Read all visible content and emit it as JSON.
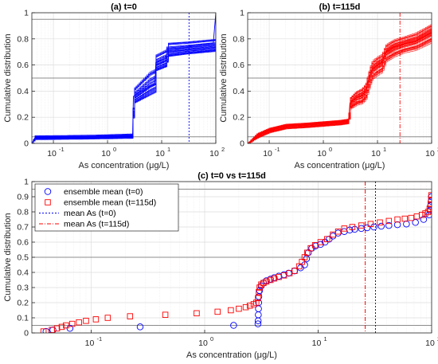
{
  "chart_data": [
    {
      "type": "line",
      "title": "(a) t=0",
      "xlabel": "As concentration (μg/L)",
      "ylabel": "Cumulative distribution",
      "xscale": "log",
      "xlim": [
        0.04,
        100
      ],
      "ylim": [
        0,
        1
      ],
      "x_ticks": [
        0.1,
        1,
        10,
        100
      ],
      "x_tick_labels": [
        "10",
        "10",
        "10",
        "10"
      ],
      "x_tick_exponents": [
        "-1",
        "0",
        "1",
        "2"
      ],
      "y_ticks": [
        0,
        0.2,
        0.4,
        0.6,
        0.8,
        1
      ],
      "y_tick_labels": [
        "0",
        "0.2",
        "0.4",
        "0.6",
        "0.8",
        "1"
      ],
      "grid": true,
      "reference_lines_y": [
        0.05,
        0.5,
        0.95
      ],
      "mean_line_x": 32,
      "color": "#0000ff",
      "series": [
        {
          "x": [
            0.04,
            0.045,
            0.1,
            0.5,
            1,
            2,
            2.9,
            3.0,
            6,
            7.5,
            7.8,
            12,
            13,
            25,
            32,
            60,
            90,
            100
          ],
          "y": [
            0.0,
            0.04,
            0.045,
            0.05,
            0.05,
            0.055,
            0.06,
            0.36,
            0.44,
            0.46,
            0.62,
            0.65,
            0.72,
            0.73,
            0.74,
            0.76,
            0.77,
            1.0
          ]
        }
      ],
      "band_upper": {
        "x": [
          0.04,
          0.045,
          0.5,
          2.9,
          3.0,
          6,
          7.5,
          7.8,
          12,
          13,
          30,
          100
        ],
        "y": [
          0.0,
          0.055,
          0.06,
          0.07,
          0.42,
          0.55,
          0.57,
          0.68,
          0.72,
          0.77,
          0.78,
          0.8
        ]
      },
      "band_lower": {
        "x": [
          0.04,
          0.045,
          0.5,
          2.9,
          3.0,
          6,
          7.5,
          7.8,
          12,
          13,
          30,
          100
        ],
        "y": [
          0.0,
          0.03,
          0.035,
          0.04,
          0.3,
          0.36,
          0.38,
          0.55,
          0.58,
          0.66,
          0.68,
          0.7
        ]
      }
    },
    {
      "type": "line",
      "title": "(b) t=115d",
      "xlabel": "As concentration (μg/L)",
      "ylabel": "Cumulative distribution",
      "xscale": "log",
      "xlim": [
        0.04,
        100
      ],
      "ylim": [
        0,
        1
      ],
      "x_ticks": [
        0.1,
        1,
        10,
        100
      ],
      "x_tick_labels": [
        "10",
        "10",
        "10",
        "10"
      ],
      "x_tick_exponents": [
        "-1",
        "0",
        "1",
        "2"
      ],
      "y_ticks": [
        0,
        0.2,
        0.4,
        0.6,
        0.8,
        1
      ],
      "y_tick_labels": [
        "0",
        "0.2",
        "0.4",
        "0.6",
        "0.8",
        "1"
      ],
      "grid": true,
      "reference_lines_y": [
        0.05,
        0.5,
        0.95
      ],
      "mean_line_x": 26,
      "color": "#ff0000",
      "series": [
        {
          "x": [
            0.04,
            0.06,
            0.1,
            0.2,
            0.5,
            1,
            2,
            2.9,
            3.1,
            4,
            5,
            6,
            7.2,
            8,
            10,
            12,
            14,
            20,
            30,
            50,
            100
          ],
          "y": [
            0.0,
            0.06,
            0.1,
            0.13,
            0.14,
            0.15,
            0.16,
            0.17,
            0.31,
            0.35,
            0.36,
            0.4,
            0.52,
            0.57,
            0.6,
            0.62,
            0.7,
            0.74,
            0.76,
            0.78,
            0.85
          ]
        }
      ],
      "band_upper": {
        "x": [
          0.04,
          0.06,
          0.1,
          0.2,
          0.5,
          1,
          2,
          2.9,
          3.1,
          4,
          5,
          6,
          7.2,
          8,
          10,
          12,
          14,
          20,
          30,
          50,
          100
        ],
        "y": [
          0.0,
          0.08,
          0.12,
          0.15,
          0.16,
          0.17,
          0.18,
          0.19,
          0.36,
          0.41,
          0.43,
          0.47,
          0.6,
          0.65,
          0.68,
          0.7,
          0.77,
          0.81,
          0.83,
          0.86,
          0.93
        ]
      },
      "band_lower": {
        "x": [
          0.04,
          0.06,
          0.1,
          0.2,
          0.5,
          1,
          2,
          2.9,
          3.1,
          4,
          5,
          6,
          7.2,
          8,
          10,
          12,
          14,
          20,
          30,
          50,
          100
        ],
        "y": [
          0.0,
          0.04,
          0.08,
          0.11,
          0.12,
          0.13,
          0.14,
          0.15,
          0.26,
          0.29,
          0.3,
          0.33,
          0.44,
          0.49,
          0.52,
          0.54,
          0.62,
          0.66,
          0.69,
          0.71,
          0.77
        ]
      }
    },
    {
      "type": "scatter",
      "title": "(c) t=0 vs t=115d",
      "xlabel": "As concentration (μg/L)",
      "ylabel": "Cumulative distribution",
      "xscale": "log",
      "xlim": [
        0.03,
        100
      ],
      "ylim": [
        0,
        1
      ],
      "x_ticks": [
        0.1,
        1,
        10,
        100
      ],
      "x_tick_labels": [
        "10",
        "10",
        "10",
        "10"
      ],
      "x_tick_exponents": [
        "-1",
        "0",
        "1",
        "2"
      ],
      "y_ticks": [
        0,
        0.1,
        0.2,
        0.3,
        0.4,
        0.5,
        0.6,
        0.7,
        0.8,
        0.9,
        1
      ],
      "y_tick_labels": [
        "0",
        "0.1",
        "0.2",
        "0.3",
        "0.4",
        "0.5",
        "0.6",
        "0.7",
        "0.8",
        "0.9",
        "1"
      ],
      "grid": true,
      "reference_lines_y": [
        0.05,
        0.5,
        0.95
      ],
      "legend_position": "top-left",
      "series": [
        {
          "name": "ensemble mean (t=0)",
          "marker": "circle",
          "color": "#0000ff",
          "x": [
            0.04,
            0.046,
            0.065,
            0.27,
            1.8,
            2.95,
            2.96,
            2.97,
            2.98,
            2.99,
            3.0,
            3.05,
            3.15,
            3.3,
            3.5,
            3.8,
            4.1,
            4.5,
            5.0,
            5.5,
            6.2,
            7.0,
            7.6,
            7.9,
            8.2,
            8.8,
            9.5,
            10.5,
            11.5,
            12.5,
            13.5,
            15,
            17,
            19,
            21,
            24,
            27,
            31,
            36,
            42,
            50,
            60,
            72,
            85,
            95,
            97,
            98,
            99,
            99.5
          ],
          "y": [
            0.01,
            0.02,
            0.03,
            0.04,
            0.05,
            0.06,
            0.08,
            0.12,
            0.16,
            0.2,
            0.24,
            0.28,
            0.31,
            0.33,
            0.345,
            0.355,
            0.365,
            0.375,
            0.385,
            0.395,
            0.41,
            0.43,
            0.45,
            0.49,
            0.53,
            0.56,
            0.575,
            0.585,
            0.6,
            0.62,
            0.64,
            0.66,
            0.67,
            0.68,
            0.685,
            0.69,
            0.695,
            0.7,
            0.705,
            0.71,
            0.715,
            0.72,
            0.73,
            0.75,
            0.78,
            0.81,
            0.84,
            0.87,
            0.9
          ]
        },
        {
          "name": "ensemble mean (t=115d)",
          "marker": "square",
          "color": "#ff0000",
          "x": [
            0.038,
            0.045,
            0.05,
            0.055,
            0.06,
            0.068,
            0.078,
            0.09,
            0.11,
            0.14,
            0.22,
            0.45,
            0.85,
            1.3,
            1.7,
            2.0,
            2.3,
            2.5,
            2.7,
            2.85,
            2.95,
            3.0,
            3.05,
            3.15,
            3.3,
            3.5,
            3.8,
            4.1,
            4.5,
            5.0,
            5.6,
            6.2,
            6.8,
            7.2,
            7.6,
            8.0,
            8.6,
            9.4,
            10.5,
            12,
            13.5,
            15,
            17,
            20,
            24,
            29,
            35,
            42,
            50,
            58,
            66,
            74,
            82,
            88,
            93,
            96,
            98,
            99,
            99.5
          ],
          "y": [
            0.01,
            0.02,
            0.03,
            0.04,
            0.05,
            0.06,
            0.07,
            0.08,
            0.09,
            0.1,
            0.11,
            0.12,
            0.13,
            0.14,
            0.15,
            0.16,
            0.17,
            0.18,
            0.19,
            0.2,
            0.23,
            0.27,
            0.3,
            0.32,
            0.33,
            0.34,
            0.35,
            0.36,
            0.37,
            0.38,
            0.395,
            0.41,
            0.44,
            0.47,
            0.5,
            0.53,
            0.56,
            0.58,
            0.6,
            0.62,
            0.65,
            0.67,
            0.69,
            0.7,
            0.71,
            0.72,
            0.73,
            0.74,
            0.75,
            0.755,
            0.76,
            0.77,
            0.78,
            0.79,
            0.8,
            0.82,
            0.85,
            0.88,
            0.91
          ]
        },
        {
          "name": "mean As (t=0)",
          "line_style": "dotted",
          "color": "#0000ff",
          "x": 32
        },
        {
          "name": "mean As (t=115d)",
          "line_style": "dash-dot",
          "color": "#ff0000",
          "x": 26
        }
      ]
    }
  ]
}
